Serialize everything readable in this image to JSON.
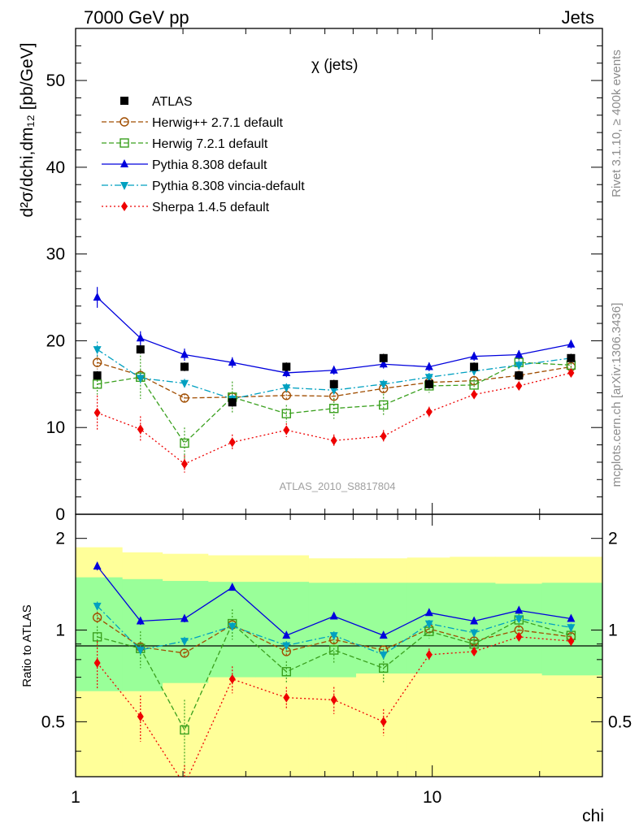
{
  "header": {
    "left": "7000 GeV pp",
    "right": "Jets"
  },
  "side_labels": {
    "rivet": "Rivet 3.1.10, ≥ 400k events",
    "source": "mcplots.cern.ch [arXiv:1306.3436]"
  },
  "analysis_label": "ATLAS_2010_S8817804",
  "chart_data": {
    "type": "line",
    "title": "χ (jets)",
    "xlabel": "chi",
    "ylabel": "d²σ/dchi,dm₁₂ [pb/GeV]",
    "ratio_ylabel": "Ratio to ATLAS",
    "xscale": "log",
    "xlim": [
      1,
      30
    ],
    "ylim": [
      0,
      56
    ],
    "ratio_ylim": [
      0.33,
      2.4
    ],
    "x_ticks": [
      {
        "value": 1,
        "label": "1"
      },
      {
        "value": 10,
        "label": "10"
      }
    ],
    "y_ticks": [
      {
        "value": 0,
        "label": "0"
      },
      {
        "value": 10,
        "label": "10"
      },
      {
        "value": 20,
        "label": "20"
      },
      {
        "value": 30,
        "label": "30"
      },
      {
        "value": 40,
        "label": "40"
      },
      {
        "value": 50,
        "label": "50"
      }
    ],
    "ratio_ticks": [
      {
        "value": 0.5,
        "label": "0.5"
      },
      {
        "value": 1,
        "label": "1"
      },
      {
        "value": 2,
        "label": "2"
      }
    ],
    "x": [
      1.15,
      1.52,
      2.02,
      2.75,
      3.9,
      5.3,
      7.3,
      9.8,
      13.1,
      17.5,
      24.5
    ],
    "bin_edges": [
      1,
      1.35,
      1.75,
      2.35,
      3.2,
      4.5,
      6.1,
      8.5,
      11.2,
      15.0,
      20.3,
      30
    ],
    "ratio_bands": {
      "inner": [
        [
          0.63,
          1.49
        ],
        [
          0.63,
          1.47
        ],
        [
          0.67,
          1.45
        ],
        [
          0.7,
          1.44
        ],
        [
          0.7,
          1.44
        ],
        [
          0.7,
          1.43
        ],
        [
          0.72,
          1.43
        ],
        [
          0.72,
          1.43
        ],
        [
          0.72,
          1.43
        ],
        [
          0.72,
          1.42
        ],
        [
          0.71,
          1.43
        ]
      ],
      "outer": [
        [
          0.3,
          1.87
        ],
        [
          0.3,
          1.8
        ],
        [
          0.3,
          1.78
        ],
        [
          0.3,
          1.76
        ],
        [
          0.3,
          1.76
        ],
        [
          0.3,
          1.72
        ],
        [
          0.3,
          1.72
        ],
        [
          0.3,
          1.73
        ],
        [
          0.3,
          1.74
        ],
        [
          0.3,
          1.74
        ],
        [
          0.3,
          1.74
        ]
      ]
    },
    "series": [
      {
        "name": "ATLAS",
        "key": "atlas",
        "color": "#000000",
        "marker": "square",
        "dash": "none",
        "values": [
          16.0,
          19.0,
          17.0,
          12.9,
          17.0,
          15.0,
          18.0,
          15.0,
          17.0,
          16.0,
          18.0
        ],
        "errors": [
          0.5,
          0.5,
          0.5,
          0.5,
          0.5,
          0.5,
          0.5,
          0.5,
          0.5,
          0.5,
          0.5
        ],
        "ratio": [
          1,
          1,
          1,
          1,
          1,
          1,
          1,
          1,
          1,
          1,
          1
        ],
        "ratio_errors": [
          0,
          0,
          0,
          0,
          0,
          0,
          0,
          0,
          0,
          0,
          0
        ]
      },
      {
        "name": "Herwig++ 2.7.1 default",
        "key": "herwigpp",
        "color": "#a04d00",
        "marker": "circle-open",
        "dash": "6,3",
        "values": [
          17.5,
          16.0,
          13.4,
          13.5,
          13.7,
          13.6,
          14.5,
          15.2,
          15.4,
          16.0,
          17.0
        ],
        "errors": [
          0.8,
          0.6,
          0.5,
          0.5,
          0.5,
          0.5,
          0.5,
          0.5,
          0.5,
          0.5,
          0.5
        ],
        "ratio": [
          1.1,
          0.88,
          0.84,
          1.04,
          0.85,
          0.93,
          0.86,
          1.01,
          0.92,
          1.0,
          0.95
        ],
        "ratio_errors": [
          0.05,
          0.03,
          0.03,
          0.04,
          0.03,
          0.03,
          0.03,
          0.03,
          0.03,
          0.03,
          0.03
        ]
      },
      {
        "name": "Herwig 7.2.1 default",
        "key": "herwig7",
        "color": "#3aa01e",
        "marker": "square-open",
        "dash": "6,3",
        "values": [
          15.0,
          15.8,
          8.2,
          13.5,
          11.6,
          12.2,
          12.6,
          14.8,
          14.9,
          17.5,
          17.2
        ],
        "errors": [
          1.2,
          2.5,
          1.8,
          1.8,
          1.0,
          1.2,
          1.3,
          0.8,
          0.7,
          0.8,
          0.6
        ],
        "ratio": [
          0.95,
          0.87,
          0.47,
          1.05,
          0.73,
          0.86,
          0.75,
          0.99,
          0.9,
          1.08,
          0.96
        ],
        "ratio_errors": [
          0.08,
          0.12,
          0.12,
          0.12,
          0.06,
          0.08,
          0.08,
          0.05,
          0.04,
          0.05,
          0.04
        ]
      },
      {
        "name": "Pythia 8.308 default",
        "key": "pythia",
        "color": "#0000dd",
        "marker": "triangle-up",
        "dash": "none",
        "values": [
          25.0,
          20.3,
          18.4,
          17.5,
          16.3,
          16.6,
          17.3,
          17.0,
          18.2,
          18.4,
          19.6
        ],
        "errors": [
          1.2,
          0.8,
          0.7,
          0.6,
          0.5,
          0.5,
          0.5,
          0.5,
          0.5,
          0.5,
          0.5
        ],
        "ratio": [
          1.62,
          1.07,
          1.09,
          1.38,
          0.96,
          1.11,
          0.96,
          1.14,
          1.07,
          1.16,
          1.09
        ],
        "ratio_errors": [
          0.05,
          0.03,
          0.03,
          0.03,
          0.02,
          0.02,
          0.02,
          0.02,
          0.02,
          0.02,
          0.02
        ]
      },
      {
        "name": "Pythia 8.308 vincia-default",
        "key": "vincia",
        "color": "#00a0c0",
        "marker": "triangle-down",
        "dash": "8,3,2,3",
        "values": [
          19.0,
          15.7,
          15.1,
          13.3,
          14.6,
          14.3,
          15.0,
          15.8,
          16.5,
          17.2,
          18.0
        ],
        "errors": [
          0.9,
          0.6,
          0.5,
          0.5,
          0.5,
          0.5,
          0.5,
          0.5,
          0.5,
          0.5,
          0.5
        ],
        "ratio": [
          1.2,
          0.86,
          0.92,
          1.03,
          0.89,
          0.96,
          0.83,
          1.05,
          0.98,
          1.09,
          1.02
        ],
        "ratio_errors": [
          0.04,
          0.03,
          0.03,
          0.03,
          0.03,
          0.03,
          0.03,
          0.03,
          0.03,
          0.03,
          0.03
        ]
      },
      {
        "name": "Sherpa 1.4.5 default",
        "key": "sherpa",
        "color": "#ee0000",
        "marker": "diamond",
        "dash": "2,3",
        "values": [
          11.7,
          9.8,
          5.8,
          8.3,
          9.7,
          8.5,
          9.0,
          11.8,
          13.8,
          14.8,
          16.3
        ],
        "errors": [
          2.0,
          1.5,
          1.0,
          0.9,
          0.8,
          0.7,
          0.7,
          0.6,
          0.5,
          0.5,
          0.5
        ],
        "ratio": [
          0.78,
          0.52,
          0.31,
          0.69,
          0.6,
          0.59,
          0.5,
          0.83,
          0.85,
          0.95,
          0.92
        ],
        "ratio_errors": [
          0.14,
          0.09,
          0.05,
          0.07,
          0.05,
          0.06,
          0.05,
          0.04,
          0.03,
          0.03,
          0.03
        ]
      }
    ]
  }
}
